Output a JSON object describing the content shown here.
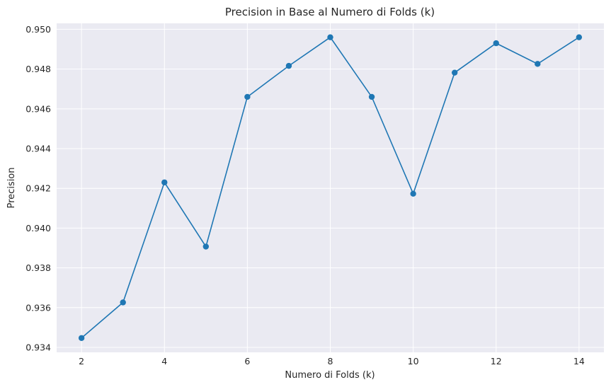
{
  "chart_data": {
    "type": "line",
    "title": "Precision in Base al Numero di Folds (k)",
    "xlabel": "Numero di Folds (k)",
    "ylabel": "Precision",
    "x": [
      2,
      3,
      4,
      5,
      6,
      7,
      8,
      9,
      10,
      11,
      12,
      13,
      14
    ],
    "series": [
      {
        "values": [
          0.93447,
          0.93626,
          0.9423,
          0.93907,
          0.9466,
          0.94816,
          0.9496,
          0.9466,
          0.94173,
          0.94782,
          0.9493,
          0.94826,
          0.9496
        ]
      }
    ],
    "xlim": [
      1.4,
      14.6
    ],
    "ylim": [
      0.93375,
      0.9503
    ],
    "xticks": [
      2,
      4,
      6,
      8,
      10,
      12,
      14
    ],
    "xtick_labels": [
      "2",
      "4",
      "6",
      "8",
      "10",
      "12",
      "14"
    ],
    "yticks": [
      0.934,
      0.936,
      0.938,
      0.94,
      0.942,
      0.944,
      0.946,
      0.948,
      0.95
    ],
    "ytick_labels": [
      "0.934",
      "0.936",
      "0.938",
      "0.940",
      "0.942",
      "0.944",
      "0.946",
      "0.948",
      "0.950"
    ],
    "grid": true,
    "colors": {
      "line": "#1f77b4",
      "background": "#eaeaf2",
      "grid": "#ffffff"
    }
  }
}
